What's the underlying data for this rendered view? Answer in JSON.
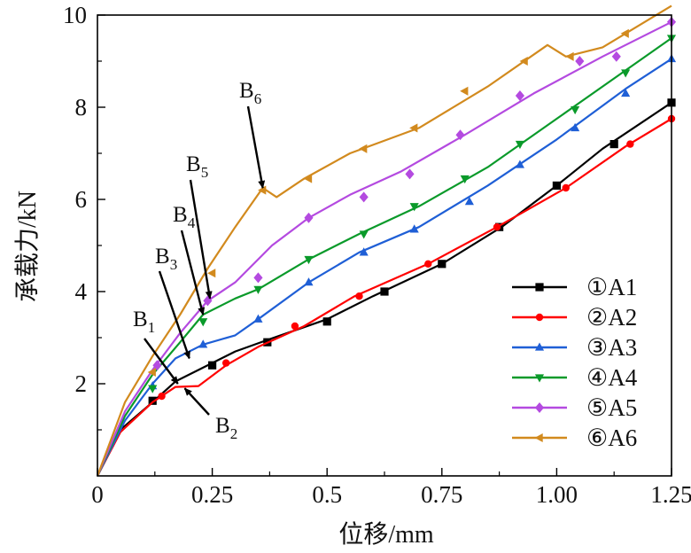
{
  "chart_data": {
    "type": "line",
    "title": "",
    "xlabel": "位移/mm",
    "ylabel": "承载力/kN",
    "xlim": [
      0,
      1.25
    ],
    "ylim": [
      0,
      10
    ],
    "xticks": [
      0,
      0.25,
      0.5,
      0.75,
      1.0,
      1.25
    ],
    "xtick_labels": [
      "0",
      "0.25",
      "0.5",
      "0.75",
      "1.00",
      "1.25"
    ],
    "yticks": [
      2,
      4,
      6,
      8,
      10
    ],
    "ytick_labels": [
      "2",
      "4",
      "6",
      "8",
      "10"
    ],
    "grid": false,
    "legend_position": "right",
    "series": [
      {
        "name": "①A1",
        "color": "#000000",
        "marker": "square",
        "x": [
          0,
          0.05,
          0.12,
          0.17,
          0.25,
          0.3,
          0.37,
          0.5,
          0.6,
          0.75,
          0.88,
          1.0,
          1.1,
          1.25
        ],
        "y": [
          0,
          1.0,
          1.6,
          2.05,
          2.45,
          2.7,
          2.95,
          3.4,
          3.9,
          4.6,
          5.4,
          6.3,
          7.1,
          8.1
        ],
        "markers_x": [
          0.12,
          0.25,
          0.37,
          0.5,
          0.625,
          0.75,
          0.875,
          1.0,
          1.125,
          1.25
        ],
        "markers_y": [
          1.63,
          2.4,
          2.9,
          3.35,
          4.0,
          4.6,
          5.4,
          6.3,
          7.2,
          8.1
        ]
      },
      {
        "name": "②A2",
        "color": "#ff0000",
        "marker": "circle",
        "x": [
          0,
          0.05,
          0.12,
          0.17,
          0.22,
          0.28,
          0.35,
          0.45,
          0.56,
          0.72,
          0.87,
          1.02,
          1.15,
          1.25
        ],
        "y": [
          0,
          0.95,
          1.6,
          1.93,
          1.95,
          2.4,
          2.8,
          3.25,
          3.9,
          4.6,
          5.4,
          6.25,
          7.15,
          7.75
        ],
        "markers_x": [
          0.14,
          0.28,
          0.43,
          0.57,
          0.72,
          0.87,
          1.02,
          1.16,
          1.25
        ],
        "markers_y": [
          1.73,
          2.45,
          3.25,
          3.9,
          4.6,
          5.4,
          6.25,
          7.2,
          7.75
        ]
      },
      {
        "name": "③A3",
        "color": "#1f5fd6",
        "marker": "triangle-up",
        "x": [
          0,
          0.06,
          0.12,
          0.17,
          0.23,
          0.3,
          0.35,
          0.46,
          0.57,
          0.7,
          0.85,
          1.0,
          1.15,
          1.25
        ],
        "y": [
          0,
          1.2,
          2.0,
          2.55,
          2.85,
          3.05,
          3.4,
          4.2,
          4.85,
          5.4,
          6.3,
          7.3,
          8.4,
          9.05
        ],
        "markers_x": [
          0.12,
          0.23,
          0.35,
          0.46,
          0.58,
          0.69,
          0.81,
          0.92,
          1.04,
          1.15,
          1.25
        ],
        "markers_y": [
          1.95,
          2.85,
          3.4,
          4.2,
          4.85,
          5.35,
          5.95,
          6.75,
          7.55,
          8.3,
          9.05
        ]
      },
      {
        "name": "④A4",
        "color": "#0a9a2a",
        "marker": "triangle-down",
        "x": [
          0,
          0.06,
          0.12,
          0.18,
          0.23,
          0.3,
          0.35,
          0.46,
          0.57,
          0.7,
          0.85,
          1.0,
          1.15,
          1.25
        ],
        "y": [
          0,
          1.3,
          2.2,
          2.9,
          3.5,
          3.85,
          4.05,
          4.7,
          5.25,
          5.85,
          6.7,
          7.75,
          8.8,
          9.5
        ],
        "markers_x": [
          0.12,
          0.23,
          0.35,
          0.46,
          0.58,
          0.69,
          0.8,
          0.92,
          1.04,
          1.15,
          1.25
        ],
        "markers_y": [
          1.9,
          3.35,
          4.05,
          4.7,
          5.25,
          5.85,
          6.45,
          7.2,
          7.95,
          8.75,
          9.5
        ]
      },
      {
        "name": "⑤A5",
        "color": "#b44ae0",
        "marker": "diamond",
        "x": [
          0,
          0.06,
          0.12,
          0.18,
          0.24,
          0.3,
          0.38,
          0.46,
          0.55,
          0.66,
          0.8,
          0.95,
          1.1,
          1.25
        ],
        "y": [
          0,
          1.4,
          2.3,
          3.1,
          3.8,
          4.2,
          5.0,
          5.6,
          6.1,
          6.6,
          7.4,
          8.3,
          9.1,
          9.85
        ],
        "markers_x": [
          0.13,
          0.24,
          0.35,
          0.46,
          0.58,
          0.68,
          0.79,
          0.92,
          1.05,
          1.13,
          1.25
        ],
        "markers_y": [
          2.4,
          3.8,
          4.3,
          5.6,
          6.05,
          6.55,
          7.4,
          8.25,
          9.0,
          9.1,
          9.85
        ]
      },
      {
        "name": "⑥A6",
        "color": "#d28a1e",
        "marker": "triangle-left",
        "x": [
          0,
          0.06,
          0.12,
          0.18,
          0.24,
          0.3,
          0.36,
          0.39,
          0.45,
          0.55,
          0.7,
          0.85,
          0.98,
          1.02,
          1.1,
          1.2,
          1.25
        ],
        "y": [
          0,
          1.6,
          2.6,
          3.5,
          4.5,
          5.4,
          6.25,
          6.05,
          6.45,
          7.0,
          7.55,
          8.45,
          9.35,
          9.1,
          9.3,
          9.9,
          10.2
        ],
        "markers_x": [
          0.12,
          0.25,
          0.36,
          0.46,
          0.58,
          0.69,
          0.8,
          0.93,
          1.03,
          1.15
        ],
        "markers_y": [
          2.25,
          4.4,
          6.2,
          6.45,
          7.1,
          7.55,
          8.35,
          9.0,
          9.1,
          9.6
        ]
      }
    ],
    "annotations": [
      {
        "base": "B",
        "sub": "1",
        "target": [
          0.175,
          2.0
        ]
      },
      {
        "base": "B",
        "sub": "2",
        "target": [
          0.175,
          1.9
        ]
      },
      {
        "base": "B",
        "sub": "3",
        "target": [
          0.2,
          2.55
        ]
      },
      {
        "base": "B",
        "sub": "4",
        "target": [
          0.23,
          3.5
        ]
      },
      {
        "base": "B",
        "sub": "5",
        "target": [
          0.245,
          3.85
        ]
      },
      {
        "base": "B",
        "sub": "6",
        "target": [
          0.36,
          6.25
        ]
      }
    ]
  }
}
